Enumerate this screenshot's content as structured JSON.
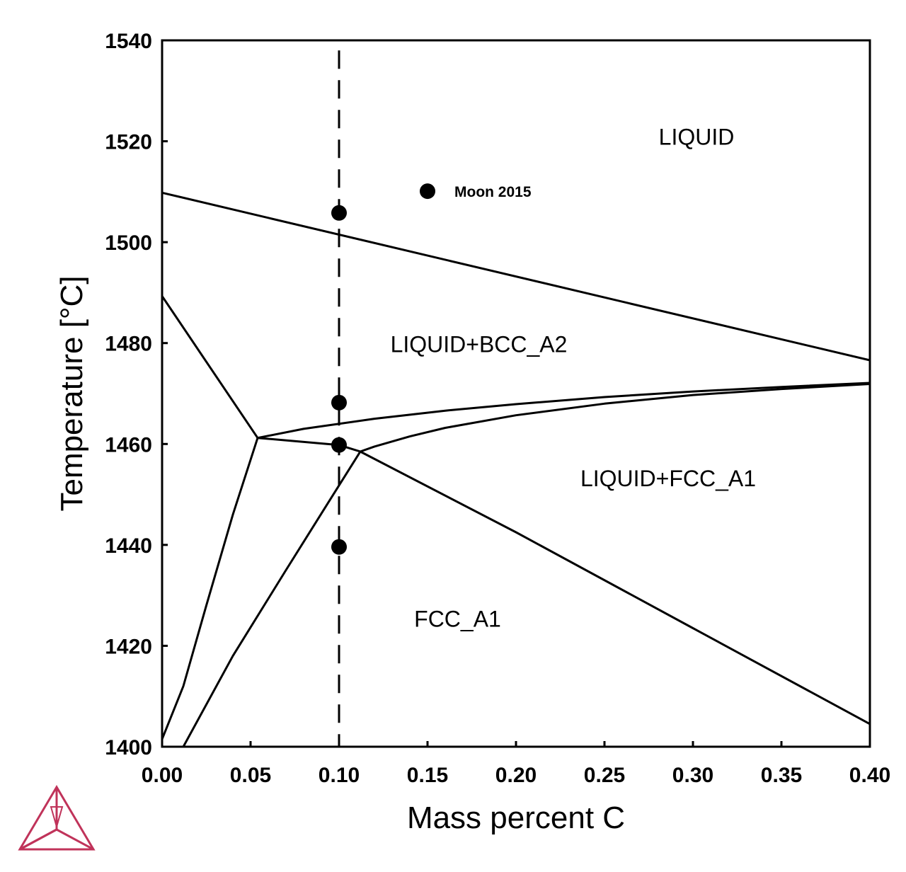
{
  "chart_data": {
    "type": "line",
    "xlabel": "Mass percent C",
    "ylabel": "Temperature [°C]",
    "xlim": [
      0.0,
      0.4
    ],
    "ylim": [
      1400,
      1540
    ],
    "x_ticks": [
      "0.00",
      "0.05",
      "0.10",
      "0.15",
      "0.20",
      "0.25",
      "0.30",
      "0.35",
      "0.40"
    ],
    "y_ticks": [
      "1400",
      "1420",
      "1440",
      "1460",
      "1480",
      "1500",
      "1520",
      "1540"
    ],
    "grid": false,
    "phase_boundaries": [
      {
        "points": [
          [
            0.0,
            1509.8
          ],
          [
            0.4,
            1476.6
          ]
        ]
      },
      {
        "points": [
          [
            0.0,
            1489.3
          ],
          [
            0.054,
            1461.2
          ]
        ]
      },
      {
        "points": [
          [
            0.054,
            1461.2
          ],
          [
            0.1,
            1459.8
          ],
          [
            0.112,
            1458.5
          ]
        ]
      },
      {
        "points": [
          [
            0.054,
            1461.2
          ],
          [
            0.08,
            1463.0
          ],
          [
            0.12,
            1465.0
          ],
          [
            0.16,
            1466.6
          ],
          [
            0.2,
            1467.9
          ],
          [
            0.25,
            1469.3
          ],
          [
            0.3,
            1470.4
          ],
          [
            0.35,
            1471.3
          ],
          [
            0.4,
            1472.1
          ]
        ]
      },
      {
        "points": [
          [
            0.112,
            1458.5
          ],
          [
            0.12,
            1459.5
          ],
          [
            0.14,
            1461.5
          ],
          [
            0.16,
            1463.2
          ],
          [
            0.2,
            1465.7
          ],
          [
            0.25,
            1468.0
          ],
          [
            0.3,
            1469.7
          ],
          [
            0.35,
            1470.9
          ],
          [
            0.4,
            1471.9
          ]
        ]
      },
      {
        "points": [
          [
            0.112,
            1458.5
          ],
          [
            0.2,
            1442.5
          ],
          [
            0.3,
            1423.5
          ],
          [
            0.4,
            1404.5
          ]
        ]
      },
      {
        "points": [
          [
            0.054,
            1461.2
          ],
          [
            0.04,
            1446.0
          ],
          [
            0.025,
            1428.0
          ],
          [
            0.012,
            1412.0
          ],
          [
            0.0,
            1401.5
          ]
        ]
      },
      {
        "points": [
          [
            0.112,
            1458.5
          ],
          [
            0.095,
            1449.0
          ],
          [
            0.07,
            1435.0
          ],
          [
            0.04,
            1418.0
          ],
          [
            0.012,
            1400.0
          ]
        ]
      }
    ],
    "isopleth": {
      "x": 0.1,
      "y_range": [
        1400,
        1538
      ],
      "style": "dashed"
    },
    "experimental_points": {
      "name": "Moon 2015",
      "points": [
        [
          0.1,
          1505.8
        ],
        [
          0.1,
          1468.2
        ],
        [
          0.1,
          1459.8
        ],
        [
          0.1,
          1439.6
        ]
      ]
    },
    "legend": {
      "label": "Moon 2015",
      "marker_at": [
        0.15,
        1510.1
      ]
    },
    "region_labels": [
      {
        "text": "LIQUID",
        "x": 0.302,
        "y": 1519.3
      },
      {
        "text": "LIQUID+BCC_A2",
        "x": 0.179,
        "y": 1478.2
      },
      {
        "text": "LIQUID+FCC_A1",
        "x": 0.286,
        "y": 1451.6
      },
      {
        "text": "FCC_A1",
        "x": 0.167,
        "y": 1423.8
      }
    ]
  },
  "logo": {
    "name": "thermo-calc-logo-icon",
    "color": "#c0335a"
  }
}
